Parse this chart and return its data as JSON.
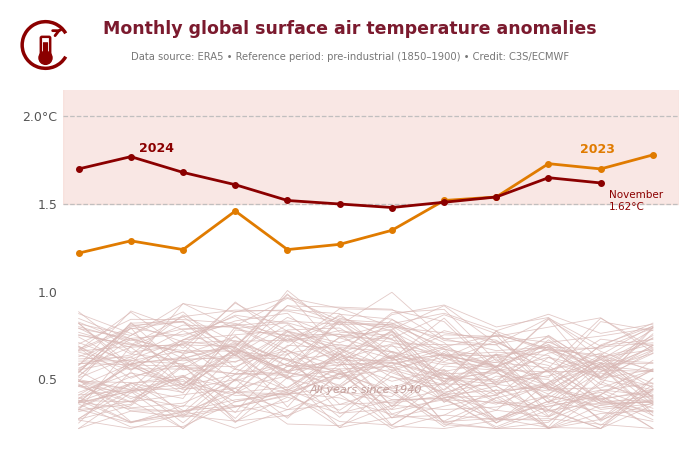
{
  "title": "Monthly global surface air temperature anomalies",
  "subtitle": "Data source: ERA5 • Reference period: pre-industrial (1850–1900) • Credit: C3S/ECMWF",
  "title_color": "#7B1A2E",
  "background_color": "#FFFFFF",
  "plot_bg_color": "#FFFFFF",
  "ylim": [
    0.2,
    2.15
  ],
  "yticks": [
    0.5,
    1.0,
    1.5,
    2.0
  ],
  "ytick_labels": [
    "0.5",
    "1.0",
    "1.5",
    "2.0°C"
  ],
  "threshold_15": 1.5,
  "threshold_20": 2.0,
  "months_2024": [
    1,
    2,
    3,
    4,
    5,
    6,
    7,
    8,
    9,
    10,
    11
  ],
  "data_2024": [
    1.7,
    1.77,
    1.68,
    1.61,
    1.52,
    1.5,
    1.48,
    1.51,
    1.54,
    1.65,
    1.62
  ],
  "months_2023": [
    1,
    2,
    3,
    4,
    5,
    6,
    7,
    8,
    9,
    10,
    11,
    12
  ],
  "data_2023": [
    1.22,
    1.29,
    1.24,
    1.46,
    1.24,
    1.27,
    1.35,
    1.52,
    1.54,
    1.73,
    1.7,
    1.78
  ],
  "color_2024": "#8B0000",
  "color_2023": "#E07B00",
  "label_2024": "2024",
  "label_2023": "2023",
  "all_years_label": "All years since 1940",
  "all_years_color": "#D9B8B5",
  "marker_size": 4,
  "line_width": 2.0,
  "shading_color": "#F5D5CF",
  "shading_alpha": 0.55
}
